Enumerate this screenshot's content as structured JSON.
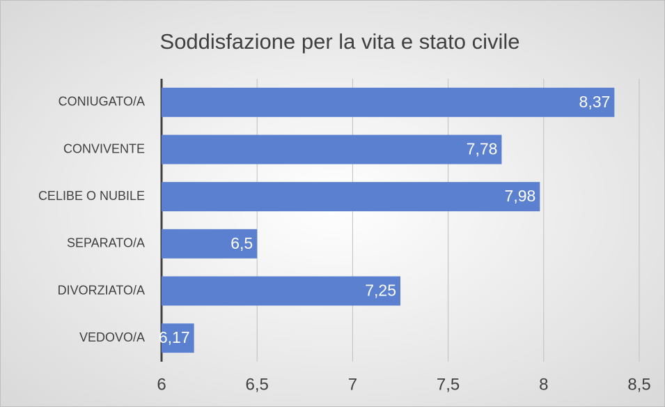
{
  "chart_data": {
    "type": "bar",
    "orientation": "horizontal",
    "title": "Soddisfazione per la vita e stato civile",
    "categories": [
      "CONIUGATO/A",
      "CONVIVENTE",
      "CELIBE O NUBILE",
      "SEPARATO/A",
      "DIVORZIATO/A",
      "VEDOVO/A"
    ],
    "values": [
      8.37,
      7.78,
      7.98,
      6.5,
      7.25,
      6.17
    ],
    "value_labels": [
      "8,37",
      "7,78",
      "7,98",
      "6,5",
      "7,25",
      "6,17"
    ],
    "color": "#5b80cf",
    "xlim": [
      6,
      8.5
    ],
    "xticks": [
      6,
      {
        "value": 6.5,
        "label": "6,5"
      },
      7,
      {
        "value": 7.5,
        "label": "7,5"
      },
      8,
      {
        "value": 8.5,
        "label": "8,5"
      }
    ],
    "grid": true
  }
}
